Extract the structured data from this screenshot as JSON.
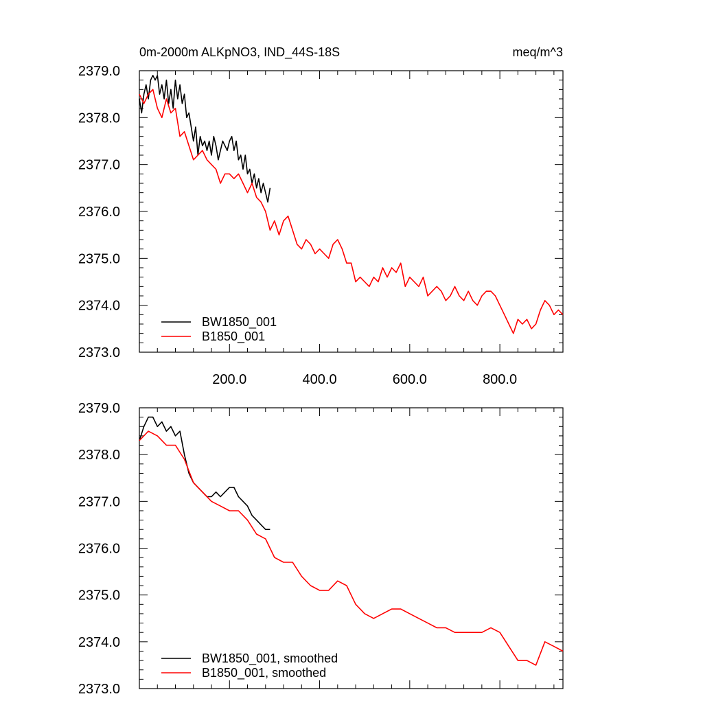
{
  "header": {
    "title": "0m-2000m ALKpNO3, IND_44S-18S",
    "units": "meq/m^3"
  },
  "chart_data": [
    {
      "type": "line",
      "panel": "top",
      "xlim": [
        0,
        940
      ],
      "ylim": [
        2373.0,
        2379.0
      ],
      "y_ticks": [
        2373.0,
        2374.0,
        2375.0,
        2376.0,
        2377.0,
        2378.0,
        2379.0
      ],
      "y_tick_labels": [
        "2373.0",
        "2374.0",
        "2375.0",
        "2376.0",
        "2377.0",
        "2378.0",
        "2379.0"
      ],
      "x_ticks": [
        200,
        400,
        600,
        800
      ],
      "x_tick_labels": [
        "200.0",
        "400.0",
        "600.0",
        "800.0"
      ],
      "legend_position": "bottom-left",
      "series": [
        {
          "name": "BW1850_001",
          "color": "#000000",
          "x": [
            0,
            5,
            10,
            15,
            20,
            25,
            30,
            35,
            40,
            45,
            50,
            55,
            60,
            65,
            70,
            75,
            80,
            85,
            90,
            95,
            100,
            105,
            110,
            115,
            120,
            125,
            130,
            135,
            140,
            145,
            150,
            155,
            160,
            165,
            170,
            175,
            180,
            185,
            190,
            195,
            200,
            205,
            210,
            215,
            220,
            225,
            230,
            235,
            240,
            245,
            250,
            255,
            260,
            265,
            270,
            275,
            280,
            285,
            290
          ],
          "values": [
            2378.4,
            2378.1,
            2378.5,
            2378.7,
            2378.4,
            2378.8,
            2378.9,
            2378.8,
            2378.9,
            2378.5,
            2378.7,
            2378.4,
            2378.8,
            2378.3,
            2378.6,
            2378.2,
            2378.8,
            2378.4,
            2378.7,
            2378.3,
            2378.5,
            2378.0,
            2378.1,
            2377.8,
            2377.5,
            2377.8,
            2377.2,
            2377.6,
            2377.4,
            2377.5,
            2377.3,
            2377.5,
            2377.2,
            2377.6,
            2377.4,
            2377.1,
            2377.3,
            2377.5,
            2377.4,
            2377.3,
            2377.5,
            2377.6,
            2377.3,
            2377.5,
            2377.1,
            2377.2,
            2376.9,
            2377.2,
            2376.8,
            2376.9,
            2376.6,
            2376.8,
            2376.5,
            2376.7,
            2376.4,
            2376.6,
            2376.4,
            2376.2,
            2376.5
          ]
        },
        {
          "name": "B1850_001",
          "color": "#ff0000",
          "x": [
            0,
            10,
            20,
            30,
            40,
            50,
            60,
            70,
            80,
            90,
            100,
            110,
            120,
            130,
            140,
            150,
            160,
            170,
            180,
            190,
            200,
            210,
            220,
            230,
            240,
            250,
            260,
            270,
            280,
            290,
            300,
            310,
            320,
            330,
            340,
            350,
            360,
            370,
            380,
            390,
            400,
            410,
            420,
            430,
            440,
            450,
            460,
            470,
            480,
            490,
            500,
            510,
            520,
            530,
            540,
            550,
            560,
            570,
            580,
            590,
            600,
            610,
            620,
            630,
            640,
            650,
            660,
            670,
            680,
            690,
            700,
            710,
            720,
            730,
            740,
            750,
            760,
            770,
            780,
            790,
            800,
            810,
            820,
            830,
            840,
            850,
            860,
            870,
            880,
            890,
            900,
            910,
            920,
            930,
            940
          ],
          "values": [
            2378.5,
            2378.3,
            2378.5,
            2378.6,
            2378.2,
            2378.0,
            2378.4,
            2378.1,
            2378.2,
            2377.6,
            2377.7,
            2377.4,
            2377.1,
            2377.2,
            2377.3,
            2377.1,
            2377.0,
            2376.9,
            2376.6,
            2376.8,
            2376.8,
            2376.7,
            2376.8,
            2376.6,
            2376.4,
            2376.6,
            2376.3,
            2376.2,
            2376.0,
            2375.6,
            2375.8,
            2375.5,
            2375.8,
            2375.9,
            2375.6,
            2375.3,
            2375.2,
            2375.4,
            2375.3,
            2375.1,
            2375.2,
            2375.1,
            2375.0,
            2375.3,
            2375.4,
            2375.2,
            2374.9,
            2374.9,
            2374.5,
            2374.6,
            2374.5,
            2374.4,
            2374.6,
            2374.5,
            2374.8,
            2374.6,
            2374.8,
            2374.7,
            2374.9,
            2374.4,
            2374.6,
            2374.5,
            2374.4,
            2374.6,
            2374.2,
            2374.3,
            2374.4,
            2374.3,
            2374.1,
            2374.2,
            2374.4,
            2374.2,
            2374.1,
            2374.3,
            2374.1,
            2374.0,
            2374.2,
            2374.3,
            2374.3,
            2374.2,
            2374.0,
            2373.8,
            2373.6,
            2373.4,
            2373.7,
            2373.6,
            2373.7,
            2373.5,
            2373.6,
            2373.9,
            2374.1,
            2374.0,
            2373.8,
            2373.9,
            2373.8
          ]
        }
      ]
    },
    {
      "type": "line",
      "panel": "bottom",
      "xlim": [
        0,
        940
      ],
      "ylim": [
        2373.0,
        2379.0
      ],
      "y_ticks": [
        2373.0,
        2374.0,
        2375.0,
        2376.0,
        2377.0,
        2378.0,
        2379.0
      ],
      "y_tick_labels": [
        "2373.0",
        "2374.0",
        "2375.0",
        "2376.0",
        "2377.0",
        "2378.0",
        "2379.0"
      ],
      "x_ticks": [
        200,
        400,
        600,
        800
      ],
      "legend_position": "bottom-left",
      "series": [
        {
          "name": "BW1850_001, smoothed",
          "color": "#000000",
          "x": [
            0,
            10,
            20,
            30,
            40,
            50,
            60,
            70,
            80,
            90,
            100,
            110,
            120,
            130,
            140,
            150,
            160,
            170,
            180,
            190,
            200,
            210,
            220,
            230,
            240,
            250,
            260,
            270,
            280,
            290
          ],
          "values": [
            2378.3,
            2378.6,
            2378.8,
            2378.8,
            2378.6,
            2378.7,
            2378.5,
            2378.6,
            2378.4,
            2378.5,
            2378.0,
            2377.6,
            2377.4,
            2377.3,
            2377.2,
            2377.1,
            2377.1,
            2377.2,
            2377.1,
            2377.2,
            2377.3,
            2377.3,
            2377.1,
            2377.0,
            2376.9,
            2376.7,
            2376.6,
            2376.5,
            2376.4,
            2376.4
          ]
        },
        {
          "name": "B1850_001, smoothed",
          "color": "#ff0000",
          "x": [
            0,
            20,
            40,
            60,
            80,
            100,
            120,
            140,
            160,
            180,
            200,
            220,
            240,
            260,
            280,
            300,
            320,
            340,
            360,
            380,
            400,
            420,
            440,
            460,
            480,
            500,
            520,
            540,
            560,
            580,
            600,
            620,
            640,
            660,
            680,
            700,
            720,
            740,
            760,
            780,
            800,
            820,
            840,
            860,
            880,
            900,
            920,
            940
          ],
          "values": [
            2378.3,
            2378.5,
            2378.4,
            2378.2,
            2378.2,
            2377.9,
            2377.4,
            2377.2,
            2377.0,
            2376.9,
            2376.8,
            2376.8,
            2376.6,
            2376.3,
            2376.2,
            2375.8,
            2375.7,
            2375.7,
            2375.4,
            2375.2,
            2375.1,
            2375.1,
            2375.3,
            2375.2,
            2374.8,
            2374.6,
            2374.5,
            2374.6,
            2374.7,
            2374.7,
            2374.6,
            2374.5,
            2374.4,
            2374.3,
            2374.3,
            2374.2,
            2374.2,
            2374.2,
            2374.2,
            2374.3,
            2374.2,
            2373.9,
            2373.6,
            2373.6,
            2373.5,
            2374.0,
            2373.9,
            2373.8
          ]
        }
      ]
    }
  ]
}
